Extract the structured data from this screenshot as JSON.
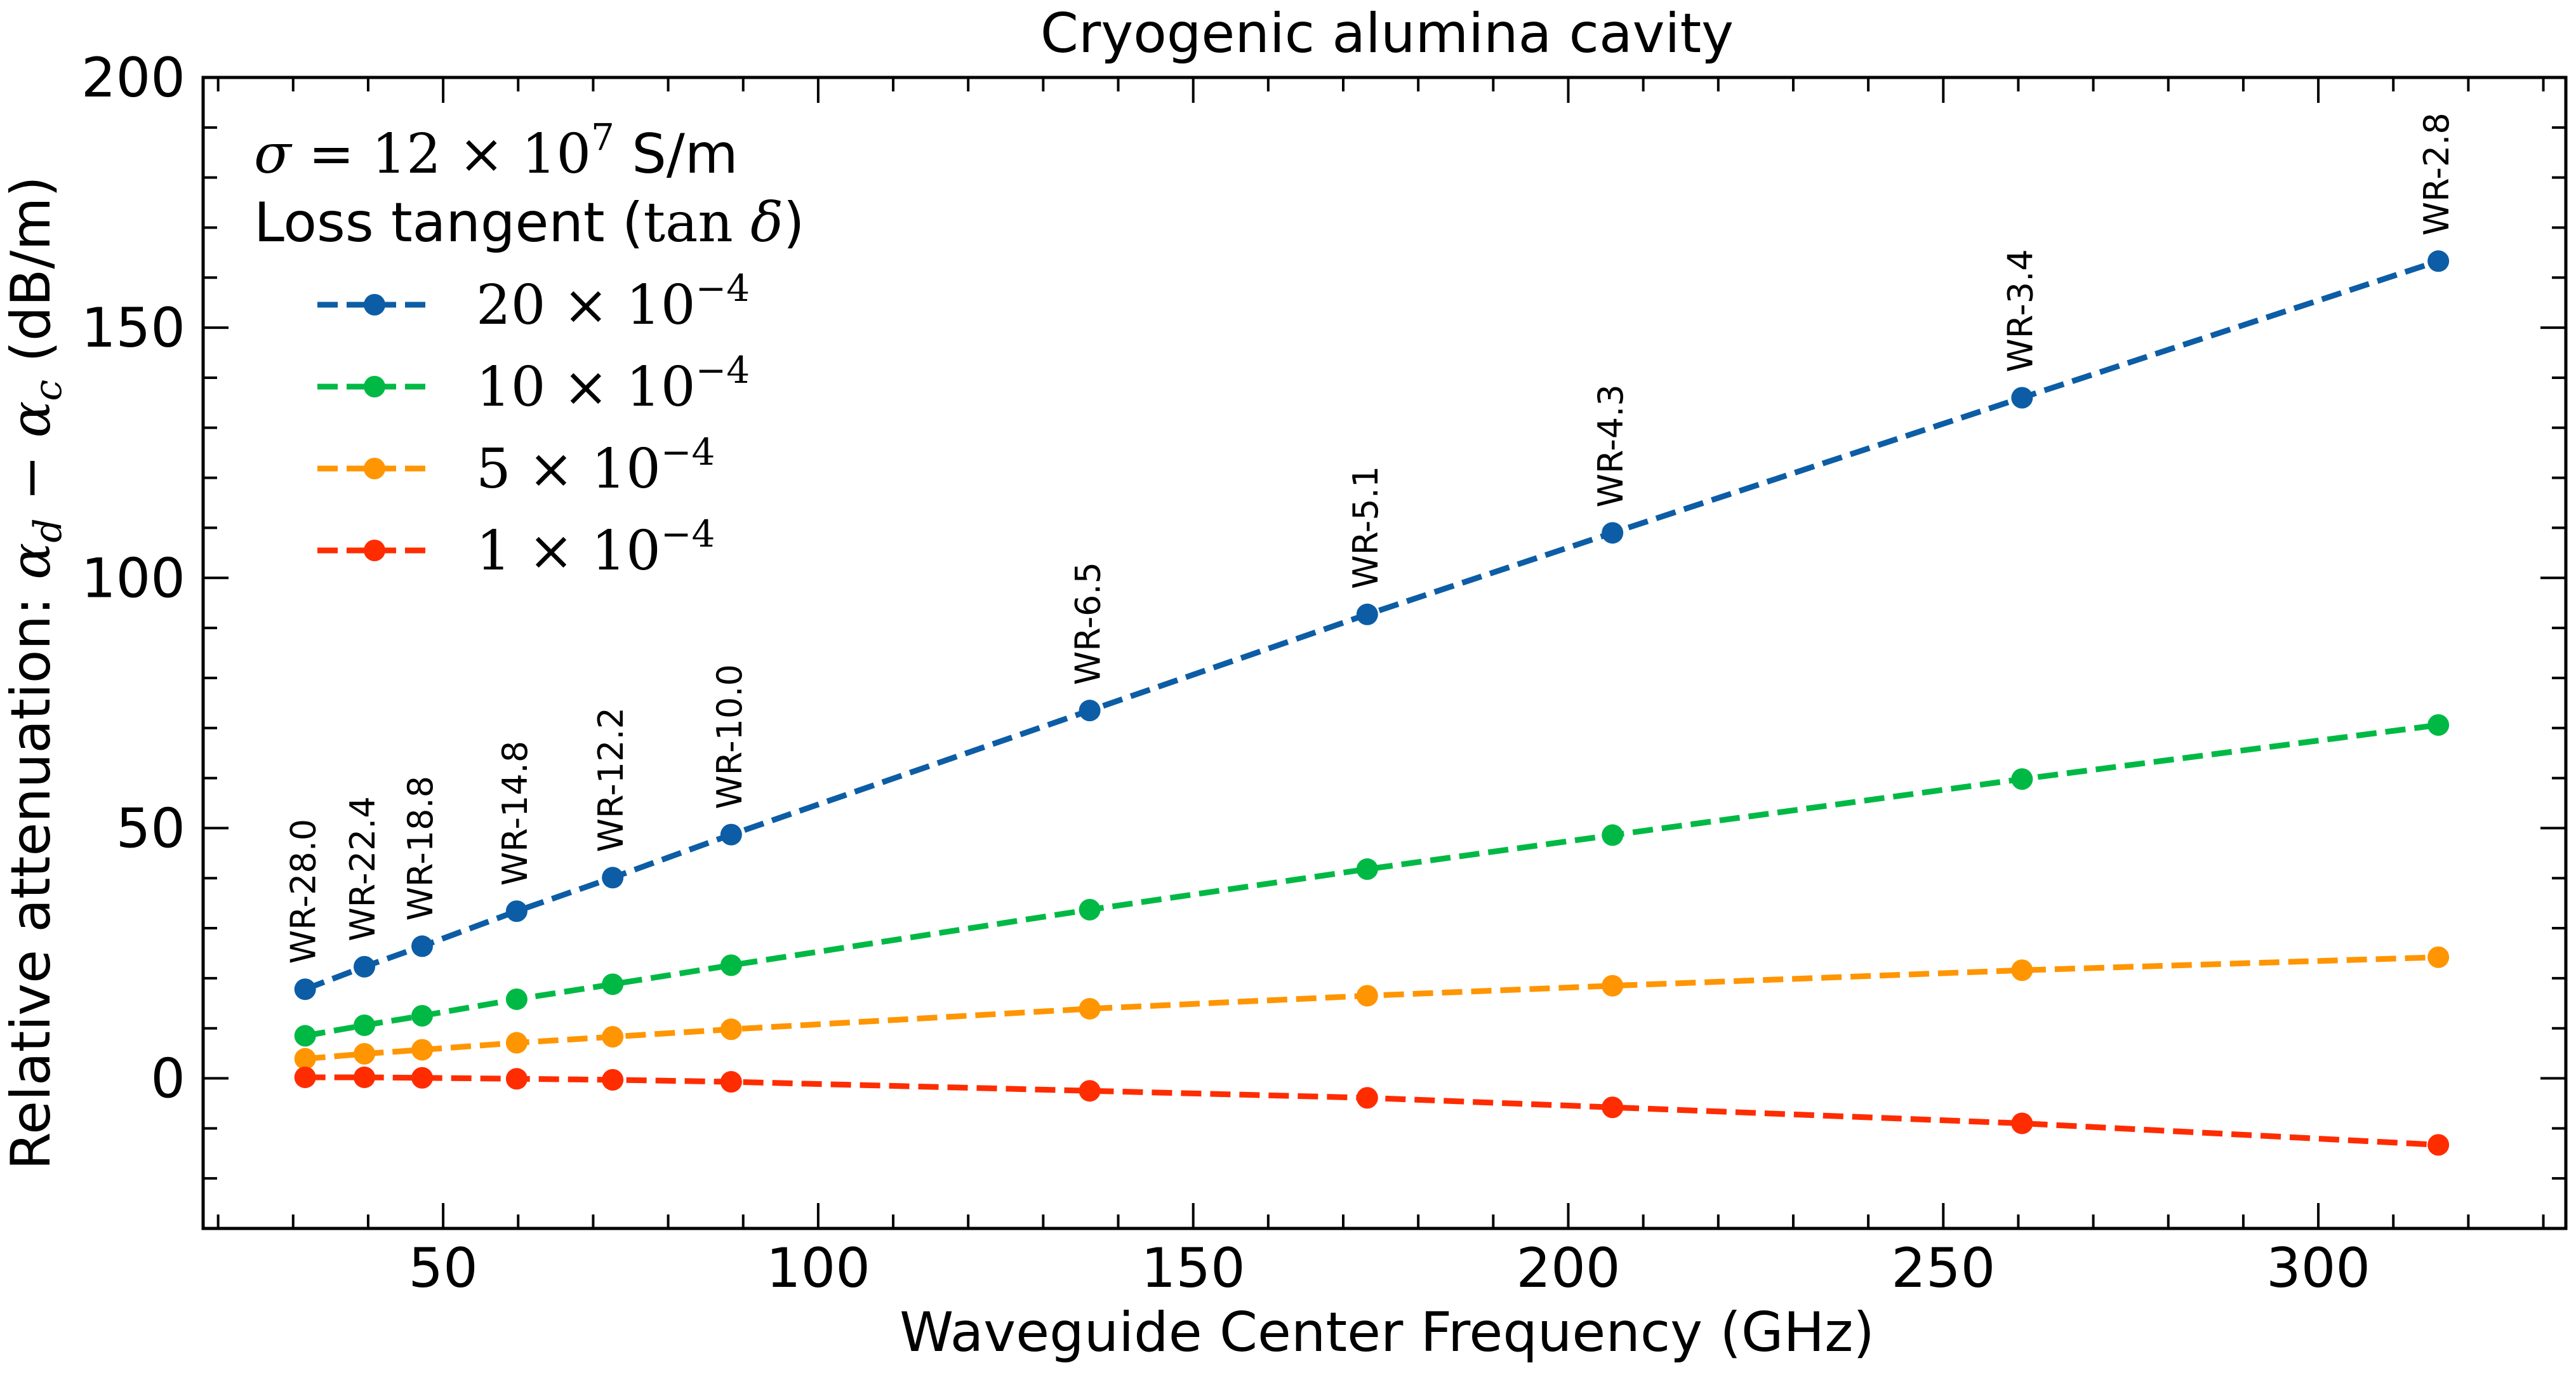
{
  "chart_data": {
    "type": "line",
    "title": "Cryogenic alumina cavity",
    "xlabel": "Waveguide Center Frequency (GHz)",
    "ylabel": {
      "prefix": "Relative attenuation: ",
      "alpha": "α",
      "sub_d": "d",
      "minus": " − ",
      "sub_c": "c",
      "unit": " (dB/m)"
    },
    "xlim": [
      18,
      333
    ],
    "ylim": [
      -30,
      200
    ],
    "xticks": [
      50,
      100,
      150,
      200,
      250,
      300
    ],
    "yticks": [
      0,
      50,
      100,
      150,
      200
    ],
    "xtick_labels": [
      "50",
      "100",
      "150",
      "200",
      "250",
      "300"
    ],
    "ytick_labels": [
      "0",
      "50",
      "100",
      "150",
      "200"
    ],
    "grid": false,
    "legend": {
      "placement": "top-left",
      "sigma_sym": "σ",
      "sigma_eq": " = 12 × 10",
      "sigma_exp": "7",
      "sigma_unit": " S/m",
      "loss_text": "Loss tangent (",
      "tan_text": "tan",
      "delta_sym": "δ",
      "loss_close": ")"
    },
    "x": [
      31.6,
      39.5,
      47.2,
      59.8,
      72.6,
      88.4,
      136.2,
      173.2,
      205.9,
      260.5,
      316.0
    ],
    "point_labels": [
      "WR-28.0",
      "WR-22.4",
      "WR-18.8",
      "WR-14.8",
      "WR-12.2",
      "WR-10.0",
      "WR-6.5",
      "WR-5.1",
      "WR-4.3",
      "WR-3.4",
      "WR-2.8"
    ],
    "series": [
      {
        "name": "20 × 10",
        "exp": "−4",
        "color": "#0c5da5",
        "values": [
          17.8,
          22.3,
          26.4,
          33.4,
          40.1,
          48.7,
          73.5,
          92.7,
          109.0,
          136.0,
          163.3
        ]
      },
      {
        "name": "10 × 10",
        "exp": "−4",
        "color": "#00b945",
        "values": [
          8.5,
          10.6,
          12.5,
          15.8,
          18.8,
          22.6,
          33.7,
          41.8,
          48.6,
          59.8,
          70.6
        ]
      },
      {
        "name": "5 × 10",
        "exp": "−4",
        "color": "#ff9500",
        "values": [
          3.9,
          4.9,
          5.7,
          7.1,
          8.3,
          9.8,
          13.9,
          16.5,
          18.5,
          21.6,
          24.2
        ]
      },
      {
        "name": "1 × 10",
        "exp": "−4",
        "color": "#ff2c00",
        "values": [
          0.2,
          0.2,
          0.1,
          -0.1,
          -0.3,
          -0.7,
          -2.5,
          -3.9,
          -5.8,
          -9.0,
          -13.3
        ]
      }
    ]
  }
}
